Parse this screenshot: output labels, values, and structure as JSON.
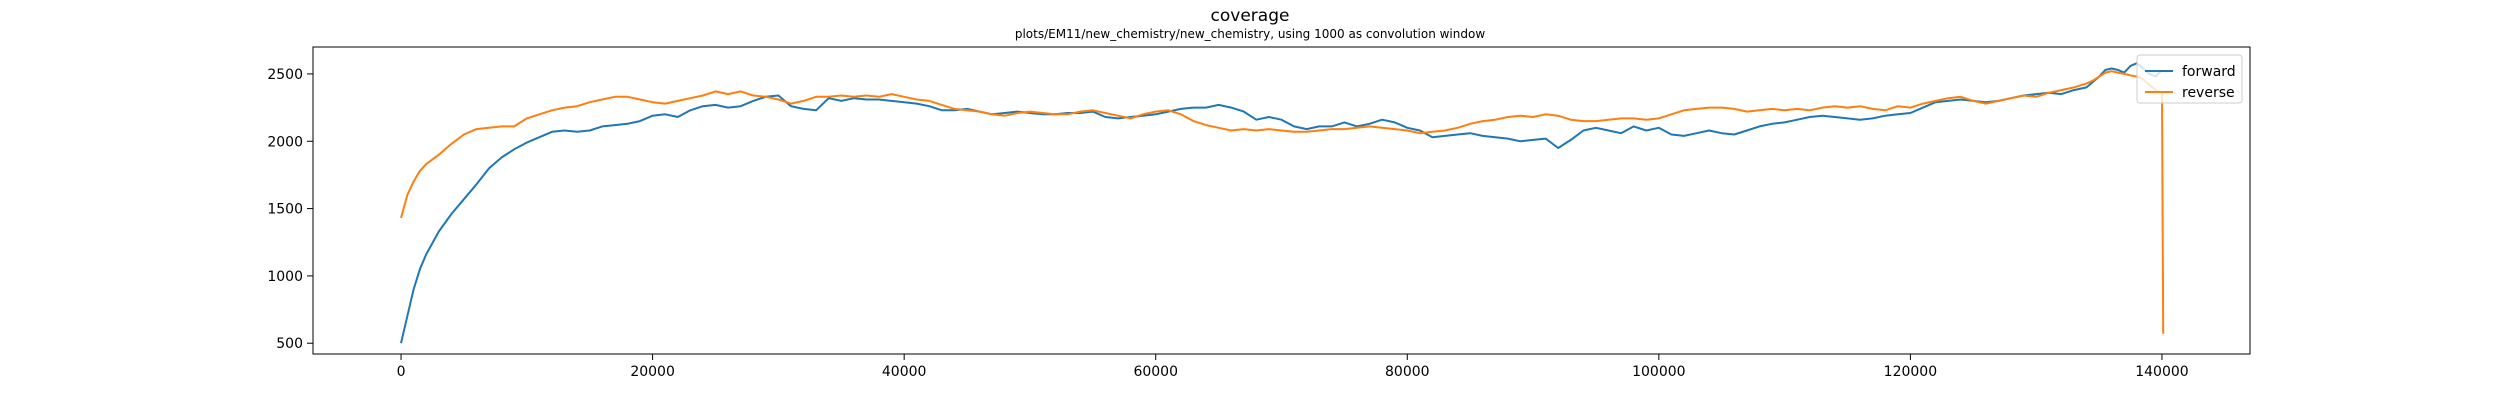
{
  "chart_data": {
    "type": "line",
    "title": "coverage",
    "subtitle": "plots/EM11/new_chemistry/new_chemistry, using 1000 as convolution window",
    "xlabel": "",
    "ylabel": "",
    "xlim": [
      -7000,
      147000
    ],
    "ylim": [
      420,
      2700
    ],
    "xticks": [
      0,
      20000,
      40000,
      60000,
      80000,
      100000,
      120000,
      140000
    ],
    "yticks": [
      500,
      1000,
      1500,
      2000,
      2500
    ],
    "legend": {
      "position": "top-right"
    },
    "series": [
      {
        "name": "forward",
        "color": "#1f77b4",
        "points": [
          [
            0,
            500
          ],
          [
            500,
            700
          ],
          [
            1000,
            900
          ],
          [
            1500,
            1050
          ],
          [
            2000,
            1160
          ],
          [
            3000,
            1330
          ],
          [
            4000,
            1460
          ],
          [
            5000,
            1570
          ],
          [
            6000,
            1680
          ],
          [
            7000,
            1800
          ],
          [
            8000,
            1880
          ],
          [
            9000,
            1940
          ],
          [
            10000,
            1990
          ],
          [
            11000,
            2030
          ],
          [
            12000,
            2070
          ],
          [
            13000,
            2080
          ],
          [
            14000,
            2070
          ],
          [
            15000,
            2080
          ],
          [
            16000,
            2110
          ],
          [
            17000,
            2120
          ],
          [
            18000,
            2130
          ],
          [
            19000,
            2150
          ],
          [
            20000,
            2190
          ],
          [
            21000,
            2200
          ],
          [
            22000,
            2180
          ],
          [
            23000,
            2230
          ],
          [
            24000,
            2260
          ],
          [
            25000,
            2270
          ],
          [
            26000,
            2250
          ],
          [
            27000,
            2260
          ],
          [
            28000,
            2300
          ],
          [
            29000,
            2330
          ],
          [
            30000,
            2340
          ],
          [
            30500,
            2300
          ],
          [
            31000,
            2260
          ],
          [
            32000,
            2240
          ],
          [
            33000,
            2230
          ],
          [
            34000,
            2320
          ],
          [
            35000,
            2300
          ],
          [
            36000,
            2320
          ],
          [
            37000,
            2310
          ],
          [
            38000,
            2310
          ],
          [
            39000,
            2300
          ],
          [
            40000,
            2290
          ],
          [
            41000,
            2280
          ],
          [
            42000,
            2260
          ],
          [
            43000,
            2230
          ],
          [
            44000,
            2230
          ],
          [
            45000,
            2240
          ],
          [
            46000,
            2220
          ],
          [
            47000,
            2200
          ],
          [
            48000,
            2210
          ],
          [
            49000,
            2220
          ],
          [
            50000,
            2210
          ],
          [
            51000,
            2200
          ],
          [
            52000,
            2200
          ],
          [
            53000,
            2210
          ],
          [
            54000,
            2210
          ],
          [
            55000,
            2220
          ],
          [
            56000,
            2180
          ],
          [
            57000,
            2170
          ],
          [
            58000,
            2180
          ],
          [
            59000,
            2190
          ],
          [
            60000,
            2200
          ],
          [
            61000,
            2220
          ],
          [
            62000,
            2240
          ],
          [
            63000,
            2250
          ],
          [
            64000,
            2250
          ],
          [
            65000,
            2270
          ],
          [
            66000,
            2250
          ],
          [
            67000,
            2220
          ],
          [
            68000,
            2160
          ],
          [
            69000,
            2180
          ],
          [
            70000,
            2160
          ],
          [
            71000,
            2110
          ],
          [
            72000,
            2090
          ],
          [
            73000,
            2110
          ],
          [
            74000,
            2110
          ],
          [
            75000,
            2140
          ],
          [
            76000,
            2110
          ],
          [
            77000,
            2130
          ],
          [
            78000,
            2160
          ],
          [
            79000,
            2140
          ],
          [
            80000,
            2100
          ],
          [
            81000,
            2080
          ],
          [
            82000,
            2030
          ],
          [
            83000,
            2040
          ],
          [
            84000,
            2050
          ],
          [
            85000,
            2060
          ],
          [
            86000,
            2040
          ],
          [
            87000,
            2030
          ],
          [
            88000,
            2020
          ],
          [
            89000,
            2000
          ],
          [
            90000,
            2010
          ],
          [
            91000,
            2020
          ],
          [
            92000,
            1950
          ],
          [
            93000,
            2010
          ],
          [
            94000,
            2080
          ],
          [
            95000,
            2100
          ],
          [
            96000,
            2080
          ],
          [
            97000,
            2060
          ],
          [
            98000,
            2110
          ],
          [
            99000,
            2080
          ],
          [
            100000,
            2100
          ],
          [
            101000,
            2050
          ],
          [
            102000,
            2040
          ],
          [
            103000,
            2060
          ],
          [
            104000,
            2080
          ],
          [
            105000,
            2060
          ],
          [
            106000,
            2050
          ],
          [
            107000,
            2080
          ],
          [
            108000,
            2110
          ],
          [
            109000,
            2130
          ],
          [
            110000,
            2140
          ],
          [
            111000,
            2160
          ],
          [
            112000,
            2180
          ],
          [
            113000,
            2190
          ],
          [
            114000,
            2180
          ],
          [
            115000,
            2170
          ],
          [
            116000,
            2160
          ],
          [
            117000,
            2170
          ],
          [
            118000,
            2190
          ],
          [
            119000,
            2200
          ],
          [
            120000,
            2210
          ],
          [
            121000,
            2250
          ],
          [
            122000,
            2290
          ],
          [
            123000,
            2300
          ],
          [
            124000,
            2310
          ],
          [
            125000,
            2300
          ],
          [
            126000,
            2290
          ],
          [
            127000,
            2300
          ],
          [
            128000,
            2320
          ],
          [
            129000,
            2340
          ],
          [
            130000,
            2350
          ],
          [
            131000,
            2360
          ],
          [
            132000,
            2350
          ],
          [
            133000,
            2380
          ],
          [
            134000,
            2400
          ],
          [
            134500,
            2440
          ],
          [
            135000,
            2480
          ],
          [
            135500,
            2530
          ],
          [
            136000,
            2540
          ],
          [
            136500,
            2530
          ],
          [
            137000,
            2510
          ],
          [
            137500,
            2560
          ],
          [
            138000,
            2580
          ],
          [
            138500,
            2540
          ],
          [
            139000,
            2500
          ],
          [
            139500,
            2480
          ],
          [
            140000,
            2530
          ]
        ]
      },
      {
        "name": "reverse",
        "color": "#ff7f0e",
        "points": [
          [
            0,
            1430
          ],
          [
            500,
            1600
          ],
          [
            1000,
            1700
          ],
          [
            1500,
            1780
          ],
          [
            2000,
            1830
          ],
          [
            3000,
            1900
          ],
          [
            4000,
            1980
          ],
          [
            5000,
            2050
          ],
          [
            6000,
            2090
          ],
          [
            7000,
            2100
          ],
          [
            8000,
            2110
          ],
          [
            9000,
            2110
          ],
          [
            10000,
            2170
          ],
          [
            11000,
            2200
          ],
          [
            12000,
            2230
          ],
          [
            13000,
            2250
          ],
          [
            14000,
            2260
          ],
          [
            15000,
            2290
          ],
          [
            16000,
            2310
          ],
          [
            17000,
            2330
          ],
          [
            18000,
            2330
          ],
          [
            19000,
            2310
          ],
          [
            20000,
            2290
          ],
          [
            21000,
            2280
          ],
          [
            22000,
            2300
          ],
          [
            23000,
            2320
          ],
          [
            24000,
            2340
          ],
          [
            25000,
            2370
          ],
          [
            26000,
            2350
          ],
          [
            27000,
            2370
          ],
          [
            28000,
            2340
          ],
          [
            29000,
            2330
          ],
          [
            30000,
            2310
          ],
          [
            31000,
            2280
          ],
          [
            32000,
            2300
          ],
          [
            33000,
            2330
          ],
          [
            34000,
            2330
          ],
          [
            35000,
            2340
          ],
          [
            36000,
            2330
          ],
          [
            37000,
            2340
          ],
          [
            38000,
            2330
          ],
          [
            39000,
            2350
          ],
          [
            40000,
            2330
          ],
          [
            41000,
            2310
          ],
          [
            42000,
            2300
          ],
          [
            43000,
            2270
          ],
          [
            44000,
            2240
          ],
          [
            45000,
            2230
          ],
          [
            46000,
            2220
          ],
          [
            47000,
            2200
          ],
          [
            48000,
            2190
          ],
          [
            49000,
            2210
          ],
          [
            50000,
            2220
          ],
          [
            51000,
            2210
          ],
          [
            52000,
            2200
          ],
          [
            53000,
            2200
          ],
          [
            54000,
            2220
          ],
          [
            55000,
            2230
          ],
          [
            56000,
            2210
          ],
          [
            57000,
            2190
          ],
          [
            58000,
            2170
          ],
          [
            59000,
            2200
          ],
          [
            60000,
            2220
          ],
          [
            61000,
            2230
          ],
          [
            62000,
            2200
          ],
          [
            63000,
            2150
          ],
          [
            64000,
            2120
          ],
          [
            65000,
            2100
          ],
          [
            66000,
            2080
          ],
          [
            67000,
            2090
          ],
          [
            68000,
            2080
          ],
          [
            69000,
            2090
          ],
          [
            70000,
            2080
          ],
          [
            71000,
            2070
          ],
          [
            72000,
            2070
          ],
          [
            73000,
            2080
          ],
          [
            74000,
            2090
          ],
          [
            75000,
            2090
          ],
          [
            76000,
            2100
          ],
          [
            77000,
            2110
          ],
          [
            78000,
            2100
          ],
          [
            79000,
            2090
          ],
          [
            80000,
            2080
          ],
          [
            81000,
            2060
          ],
          [
            82000,
            2070
          ],
          [
            83000,
            2080
          ],
          [
            84000,
            2100
          ],
          [
            85000,
            2130
          ],
          [
            86000,
            2150
          ],
          [
            87000,
            2160
          ],
          [
            88000,
            2180
          ],
          [
            89000,
            2190
          ],
          [
            90000,
            2180
          ],
          [
            91000,
            2200
          ],
          [
            92000,
            2190
          ],
          [
            93000,
            2160
          ],
          [
            94000,
            2150
          ],
          [
            95000,
            2150
          ],
          [
            96000,
            2160
          ],
          [
            97000,
            2170
          ],
          [
            98000,
            2170
          ],
          [
            99000,
            2160
          ],
          [
            100000,
            2170
          ],
          [
            101000,
            2200
          ],
          [
            102000,
            2230
          ],
          [
            103000,
            2240
          ],
          [
            104000,
            2250
          ],
          [
            105000,
            2250
          ],
          [
            106000,
            2240
          ],
          [
            107000,
            2220
          ],
          [
            108000,
            2230
          ],
          [
            109000,
            2240
          ],
          [
            110000,
            2230
          ],
          [
            111000,
            2240
          ],
          [
            112000,
            2230
          ],
          [
            113000,
            2250
          ],
          [
            114000,
            2260
          ],
          [
            115000,
            2250
          ],
          [
            116000,
            2260
          ],
          [
            117000,
            2240
          ],
          [
            118000,
            2230
          ],
          [
            119000,
            2260
          ],
          [
            120000,
            2250
          ],
          [
            121000,
            2280
          ],
          [
            122000,
            2300
          ],
          [
            123000,
            2320
          ],
          [
            124000,
            2330
          ],
          [
            125000,
            2300
          ],
          [
            126000,
            2280
          ],
          [
            127000,
            2300
          ],
          [
            128000,
            2320
          ],
          [
            129000,
            2340
          ],
          [
            130000,
            2330
          ],
          [
            131000,
            2360
          ],
          [
            132000,
            2380
          ],
          [
            133000,
            2400
          ],
          [
            134000,
            2430
          ],
          [
            134500,
            2450
          ],
          [
            135000,
            2480
          ],
          [
            135500,
            2510
          ],
          [
            136000,
            2520
          ],
          [
            136500,
            2510
          ],
          [
            137000,
            2500
          ],
          [
            137500,
            2490
          ],
          [
            138000,
            2480
          ],
          [
            138500,
            2460
          ],
          [
            139000,
            2420
          ],
          [
            139500,
            2380
          ],
          [
            140000,
            2360
          ],
          [
            140100,
            570
          ]
        ]
      }
    ]
  }
}
